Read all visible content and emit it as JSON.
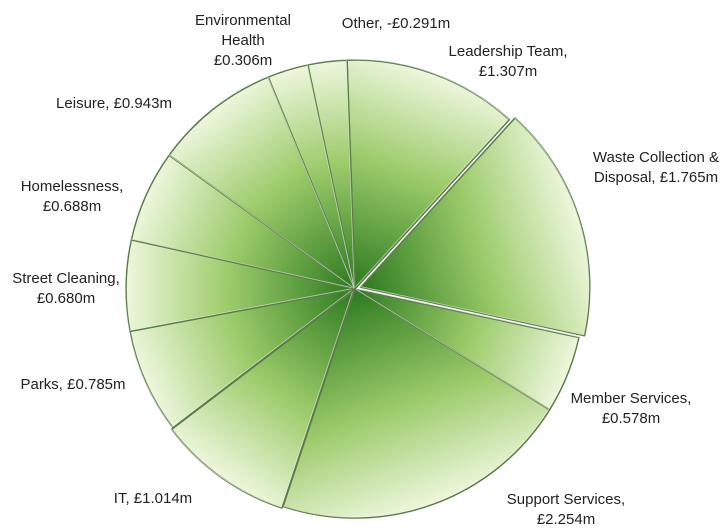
{
  "chart_data": {
    "type": "pie",
    "title": "",
    "categories": [
      "Leadership Team",
      "Waste Collection & Disposal",
      "Member Services",
      "Support Services",
      "IT",
      "Parks",
      "Street Cleaning",
      "Homelessness",
      "Leisure",
      "Environmental Health",
      "Other"
    ],
    "values": [
      1.307,
      1.765,
      0.578,
      2.254,
      1.014,
      0.785,
      0.68,
      0.688,
      0.943,
      0.306,
      -0.291
    ],
    "labels": [
      [
        "Leadership Team,",
        "£1.307m"
      ],
      [
        "Waste Collection &",
        "Disposal, £1.765m"
      ],
      [
        "Member Services,",
        "£0.578m"
      ],
      [
        "Support Services,",
        "£2.254m"
      ],
      [
        "IT, £1.014m"
      ],
      [
        "Parks, £0.785m"
      ],
      [
        "Street Cleaning,",
        "£0.680m"
      ],
      [
        "Homelessness,",
        "£0.688m"
      ],
      [
        "Leisure, £0.943m"
      ],
      [
        "Environmental",
        "Health",
        "£0.306m"
      ],
      [
        "Other, -£0.291m"
      ]
    ],
    "legend": "none",
    "colors": {
      "light": "#eef7dd",
      "mid": "#9ccb6a",
      "dark": "#2c7a1f",
      "edge": "#5c7d4a"
    }
  }
}
